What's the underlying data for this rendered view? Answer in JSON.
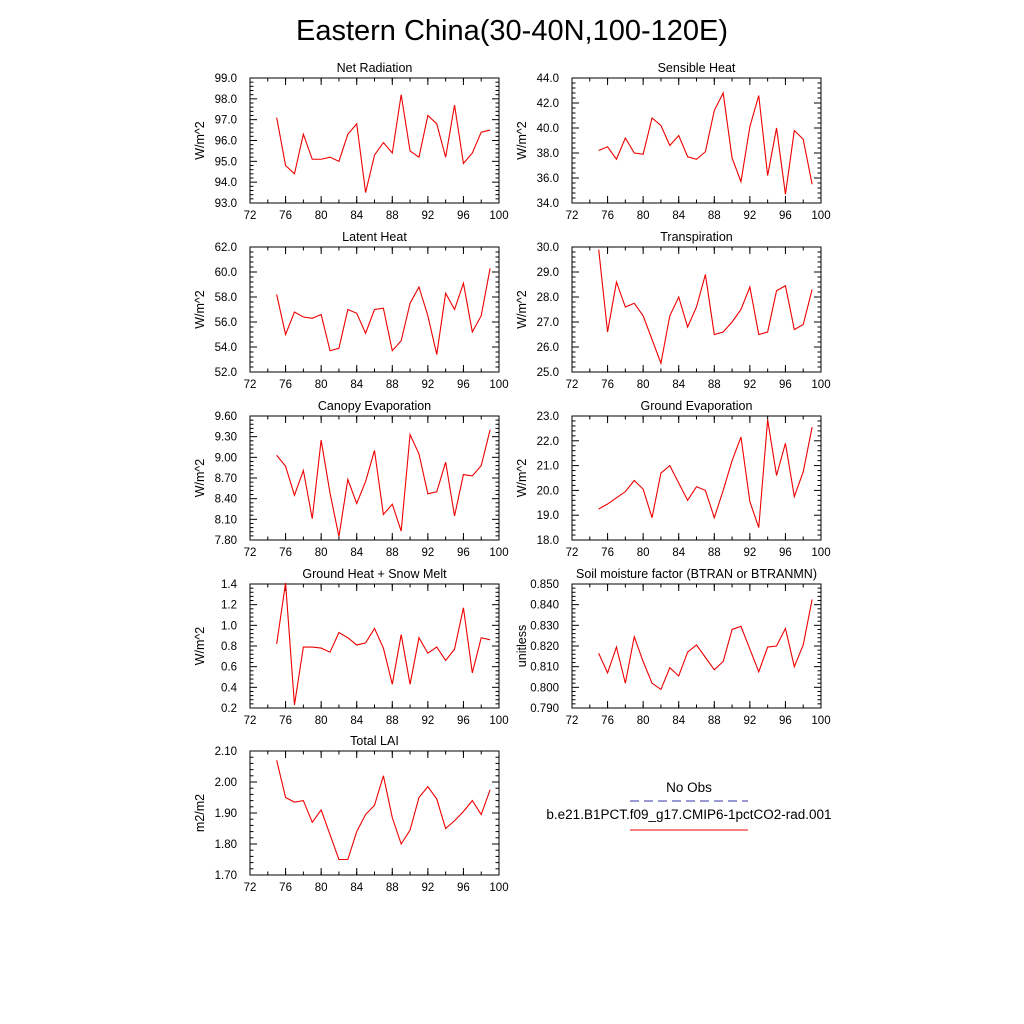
{
  "page_title": "Eastern China(30-40N,100-120E)",
  "legend": {
    "obs_label": "No Obs",
    "obs_color": "#3333aa",
    "model_label": "b.e21.B1PCT.f09_g17.CMIP6-1pctCO2-rad.001",
    "model_color": "#ee0000"
  },
  "chart_data": [
    {
      "type": "line",
      "title": "Net Radiation",
      "ylabel": "W/m^2",
      "xlabel": "",
      "xlim": [
        72,
        100
      ],
      "ylim": [
        93.0,
        99.0
      ],
      "xticks": [
        "72",
        "76",
        "80",
        "84",
        "88",
        "92",
        "96",
        "100"
      ],
      "yticks": [
        "93.0",
        "94.0",
        "95.0",
        "96.0",
        "97.0",
        "98.0",
        "99.0"
      ],
      "x": [
        75,
        76,
        77,
        78,
        79,
        80,
        81,
        82,
        83,
        84,
        85,
        86,
        87,
        88,
        89,
        90,
        91,
        92,
        93,
        94,
        95,
        96,
        97,
        98,
        99
      ],
      "series": [
        {
          "values": [
            97.1,
            94.8,
            94.4,
            96.3,
            95.1,
            95.1,
            95.2,
            95.0,
            96.3,
            96.8,
            93.5,
            95.3,
            95.9,
            95.4,
            98.2,
            95.5,
            95.2,
            97.2,
            96.8,
            95.2,
            97.7,
            94.9,
            95.4,
            96.4,
            96.5
          ]
        }
      ]
    },
    {
      "type": "line",
      "title": "Sensible Heat",
      "ylabel": "W/m^2",
      "xlabel": "",
      "xlim": [
        72,
        100
      ],
      "ylim": [
        34.0,
        44.0
      ],
      "xticks": [
        "72",
        "76",
        "80",
        "84",
        "88",
        "92",
        "96",
        "100"
      ],
      "yticks": [
        "34.0",
        "36.0",
        "38.0",
        "40.0",
        "42.0",
        "44.0"
      ],
      "x": [
        75,
        76,
        77,
        78,
        79,
        80,
        81,
        82,
        83,
        84,
        85,
        86,
        87,
        88,
        89,
        90,
        91,
        92,
        93,
        94,
        95,
        96,
        97,
        98,
        99
      ],
      "series": [
        {
          "values": [
            38.2,
            38.5,
            37.5,
            39.2,
            38.0,
            37.9,
            40.8,
            40.2,
            38.6,
            39.4,
            37.7,
            37.5,
            38.1,
            41.4,
            42.8,
            37.6,
            35.7,
            40.1,
            42.6,
            36.2,
            40.0,
            34.7,
            39.8,
            39.1,
            35.5
          ]
        }
      ]
    },
    {
      "type": "line",
      "title": "Latent Heat",
      "ylabel": "W/m^2",
      "xlabel": "",
      "xlim": [
        72,
        100
      ],
      "ylim": [
        52.0,
        62.0
      ],
      "xticks": [
        "72",
        "76",
        "80",
        "84",
        "88",
        "92",
        "96",
        "100"
      ],
      "yticks": [
        "52.0",
        "54.0",
        "56.0",
        "58.0",
        "60.0",
        "62.0"
      ],
      "x": [
        75,
        76,
        77,
        78,
        79,
        80,
        81,
        82,
        83,
        84,
        85,
        86,
        87,
        88,
        89,
        90,
        91,
        92,
        93,
        94,
        95,
        96,
        97,
        98,
        99
      ],
      "series": [
        {
          "values": [
            58.2,
            55.0,
            56.8,
            56.4,
            56.3,
            56.6,
            53.7,
            53.9,
            57.0,
            56.7,
            55.1,
            57.0,
            57.1,
            53.7,
            54.5,
            57.5,
            58.8,
            56.5,
            53.4,
            58.3,
            57.0,
            59.1,
            55.2,
            56.5,
            60.3
          ]
        }
      ]
    },
    {
      "type": "line",
      "title": "Transpiration",
      "ylabel": "W/m^2",
      "xlabel": "",
      "xlim": [
        72,
        100
      ],
      "ylim": [
        25.0,
        30.0
      ],
      "xticks": [
        "72",
        "76",
        "80",
        "84",
        "88",
        "92",
        "96",
        "100"
      ],
      "yticks": [
        "25.0",
        "26.0",
        "27.0",
        "28.0",
        "29.0",
        "30.0"
      ],
      "x": [
        75,
        76,
        77,
        78,
        79,
        80,
        81,
        82,
        83,
        84,
        85,
        86,
        87,
        88,
        89,
        90,
        91,
        92,
        93,
        94,
        95,
        96,
        97,
        98,
        99
      ],
      "series": [
        {
          "values": [
            29.9,
            26.6,
            28.6,
            27.6,
            27.75,
            27.25,
            26.3,
            25.35,
            27.25,
            28.0,
            26.8,
            27.6,
            28.9,
            26.5,
            26.6,
            27.0,
            27.5,
            28.4,
            26.5,
            26.6,
            28.25,
            28.45,
            26.7,
            26.9,
            28.3
          ]
        }
      ]
    },
    {
      "type": "line",
      "title": "Canopy Evaporation",
      "ylabel": "W/m^2",
      "xlabel": "",
      "xlim": [
        72,
        100
      ],
      "ylim": [
        7.8,
        9.6
      ],
      "xticks": [
        "72",
        "76",
        "80",
        "84",
        "88",
        "92",
        "96",
        "100"
      ],
      "yticks": [
        "7.80",
        "8.10",
        "8.40",
        "8.70",
        "9.00",
        "9.30",
        "9.60"
      ],
      "x": [
        75,
        76,
        77,
        78,
        79,
        80,
        81,
        82,
        83,
        84,
        85,
        86,
        87,
        88,
        89,
        90,
        91,
        92,
        93,
        94,
        95,
        96,
        97,
        98,
        99
      ],
      "series": [
        {
          "values": [
            9.03,
            8.87,
            8.45,
            8.81,
            8.11,
            9.25,
            8.48,
            7.85,
            8.68,
            8.33,
            8.65,
            9.1,
            8.17,
            8.32,
            7.93,
            9.33,
            9.05,
            8.47,
            8.5,
            8.93,
            8.15,
            8.75,
            8.73,
            8.88,
            9.4
          ]
        }
      ]
    },
    {
      "type": "line",
      "title": "Ground Evaporation",
      "ylabel": "W/m^2",
      "xlabel": "",
      "xlim": [
        72,
        100
      ],
      "ylim": [
        18.0,
        23.0
      ],
      "xticks": [
        "72",
        "76",
        "80",
        "84",
        "88",
        "92",
        "96",
        "100"
      ],
      "yticks": [
        "18.0",
        "19.0",
        "20.0",
        "21.0",
        "22.0",
        "23.0"
      ],
      "x": [
        75,
        76,
        77,
        78,
        79,
        80,
        81,
        82,
        83,
        84,
        85,
        86,
        87,
        88,
        89,
        90,
        91,
        92,
        93,
        94,
        95,
        96,
        97,
        98,
        99
      ],
      "series": [
        {
          "values": [
            19.25,
            19.45,
            19.7,
            19.95,
            20.4,
            20.05,
            18.9,
            20.7,
            21.0,
            20.3,
            19.6,
            20.15,
            20.0,
            18.9,
            20.0,
            21.2,
            22.15,
            19.55,
            18.5,
            22.85,
            20.6,
            21.9,
            19.75,
            20.75,
            22.55
          ]
        }
      ]
    },
    {
      "type": "line",
      "title": "Ground Heat + Snow Melt",
      "ylabel": "W/m^2",
      "xlabel": "",
      "xlim": [
        72,
        100
      ],
      "ylim": [
        0.2,
        1.4
      ],
      "xticks": [
        "72",
        "76",
        "80",
        "84",
        "88",
        "92",
        "96",
        "100"
      ],
      "yticks": [
        "0.2",
        "0.4",
        "0.6",
        "0.8",
        "1.0",
        "1.2",
        "1.4"
      ],
      "x": [
        75,
        76,
        77,
        78,
        79,
        80,
        81,
        82,
        83,
        84,
        85,
        86,
        87,
        88,
        89,
        90,
        91,
        92,
        93,
        94,
        95,
        96,
        97,
        98,
        99
      ],
      "series": [
        {
          "values": [
            0.82,
            1.41,
            0.23,
            0.79,
            0.79,
            0.78,
            0.74,
            0.93,
            0.88,
            0.81,
            0.83,
            0.97,
            0.78,
            0.43,
            0.91,
            0.43,
            0.88,
            0.73,
            0.79,
            0.66,
            0.77,
            1.17,
            0.54,
            0.88,
            0.86
          ]
        }
      ]
    },
    {
      "type": "line",
      "title": "Soil moisture factor (BTRAN or BTRANMN)",
      "ylabel": "unitless",
      "xlabel": "",
      "xlim": [
        72,
        100
      ],
      "ylim": [
        0.79,
        0.85
      ],
      "xticks": [
        "72",
        "76",
        "80",
        "84",
        "88",
        "92",
        "96",
        "100"
      ],
      "yticks": [
        "0.790",
        "0.800",
        "0.810",
        "0.820",
        "0.830",
        "0.840",
        "0.850"
      ],
      "x": [
        75,
        76,
        77,
        78,
        79,
        80,
        81,
        82,
        83,
        84,
        85,
        86,
        87,
        88,
        89,
        90,
        91,
        92,
        93,
        94,
        95,
        96,
        97,
        98,
        99
      ],
      "series": [
        {
          "values": [
            0.8165,
            0.807,
            0.8195,
            0.802,
            0.8245,
            0.8125,
            0.802,
            0.799,
            0.8095,
            0.8055,
            0.817,
            0.8205,
            0.8145,
            0.8085,
            0.8125,
            0.828,
            0.8295,
            0.8185,
            0.8075,
            0.8195,
            0.82,
            0.8285,
            0.81,
            0.8205,
            0.8425
          ]
        }
      ]
    },
    {
      "type": "line",
      "title": "Total LAI",
      "ylabel": "m2/m2",
      "xlabel": "",
      "xlim": [
        72,
        100
      ],
      "ylim": [
        1.7,
        2.1
      ],
      "xticks": [
        "72",
        "76",
        "80",
        "84",
        "88",
        "92",
        "96",
        "100"
      ],
      "yticks": [
        "1.70",
        "1.80",
        "1.90",
        "2.00",
        "2.10"
      ],
      "x": [
        75,
        76,
        77,
        78,
        79,
        80,
        81,
        82,
        83,
        84,
        85,
        86,
        87,
        88,
        89,
        90,
        91,
        92,
        93,
        94,
        95,
        96,
        97,
        98,
        99
      ],
      "series": [
        {
          "values": [
            2.07,
            1.95,
            1.935,
            1.94,
            1.87,
            1.91,
            1.83,
            1.75,
            1.75,
            1.84,
            1.895,
            1.925,
            2.02,
            1.885,
            1.8,
            1.845,
            1.95,
            1.985,
            1.945,
            1.85,
            1.875,
            1.905,
            1.94,
            1.895,
            1.975
          ]
        }
      ]
    }
  ]
}
